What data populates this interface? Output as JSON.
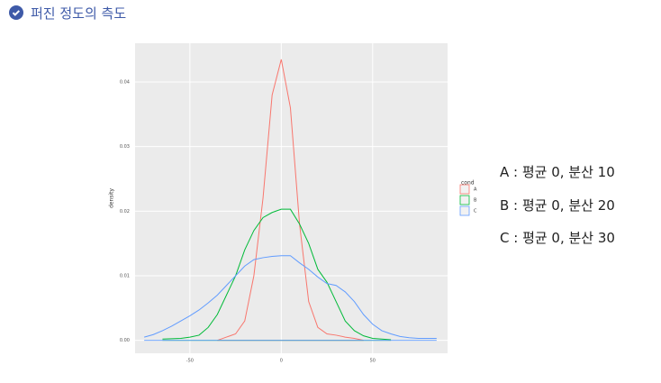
{
  "heading": "퍼진 정도의 측도",
  "chart_data": {
    "type": "line",
    "ylabel": "density",
    "legend_title": "cond",
    "grid": true,
    "xlim": [
      -80,
      91
    ],
    "ylim": [
      -0.002,
      0.046
    ],
    "xticks": [
      -50,
      0,
      50
    ],
    "yticks": [
      {
        "value": 0,
        "label": "0.00"
      },
      {
        "value": 0.01,
        "label": "0.01"
      },
      {
        "value": 0.02,
        "label": "0.02"
      },
      {
        "value": 0.03,
        "label": "0.03"
      },
      {
        "value": 0.04,
        "label": "0.04"
      }
    ],
    "series": [
      {
        "name": "A",
        "color": "#f8766d",
        "x": [
          -35,
          -30,
          -25,
          -20,
          -15,
          -10,
          -5,
          0,
          5,
          10,
          15,
          20,
          25,
          30,
          35,
          40,
          45
        ],
        "values": [
          0,
          0.0005,
          0.001,
          0.003,
          0.01,
          0.022,
          0.038,
          0.0435,
          0.036,
          0.018,
          0.006,
          0.002,
          0.001,
          0.0008,
          0.0005,
          0.0003,
          0
        ]
      },
      {
        "name": "B",
        "color": "#00ba38",
        "x": [
          -65,
          -55,
          -50,
          -45,
          -40,
          -35,
          -30,
          -25,
          -20,
          -15,
          -10,
          -5,
          0,
          5,
          10,
          15,
          20,
          25,
          30,
          35,
          40,
          45,
          50,
          55,
          60
        ],
        "values": [
          0.0002,
          0.0003,
          0.0005,
          0.0008,
          0.002,
          0.004,
          0.007,
          0.01,
          0.014,
          0.017,
          0.019,
          0.0198,
          0.0203,
          0.0203,
          0.018,
          0.015,
          0.011,
          0.009,
          0.006,
          0.003,
          0.0015,
          0.0007,
          0.0003,
          0.0002,
          0.0001
        ]
      },
      {
        "name": "C",
        "color": "#619cff",
        "x": [
          -75,
          -70,
          -65,
          -60,
          -55,
          -50,
          -45,
          -40,
          -35,
          -30,
          -25,
          -20,
          -15,
          -10,
          -5,
          0,
          5,
          10,
          15,
          20,
          25,
          30,
          35,
          40,
          45,
          50,
          55,
          60,
          65,
          70,
          75,
          80,
          85
        ],
        "values": [
          0.0005,
          0.0009,
          0.0015,
          0.0022,
          0.003,
          0.0038,
          0.0047,
          0.0058,
          0.007,
          0.0085,
          0.01,
          0.0115,
          0.0125,
          0.0128,
          0.013,
          0.0131,
          0.0131,
          0.012,
          0.011,
          0.0098,
          0.0088,
          0.0085,
          0.0075,
          0.006,
          0.004,
          0.0025,
          0.0015,
          0.001,
          0.0006,
          0.0004,
          0.0003,
          0.0003,
          0.0003
        ]
      }
    ]
  },
  "notes": [
    "A : 평균 0, 분산 10",
    "B : 평균 0, 분산 20",
    "C : 평균 0, 분산 30"
  ]
}
